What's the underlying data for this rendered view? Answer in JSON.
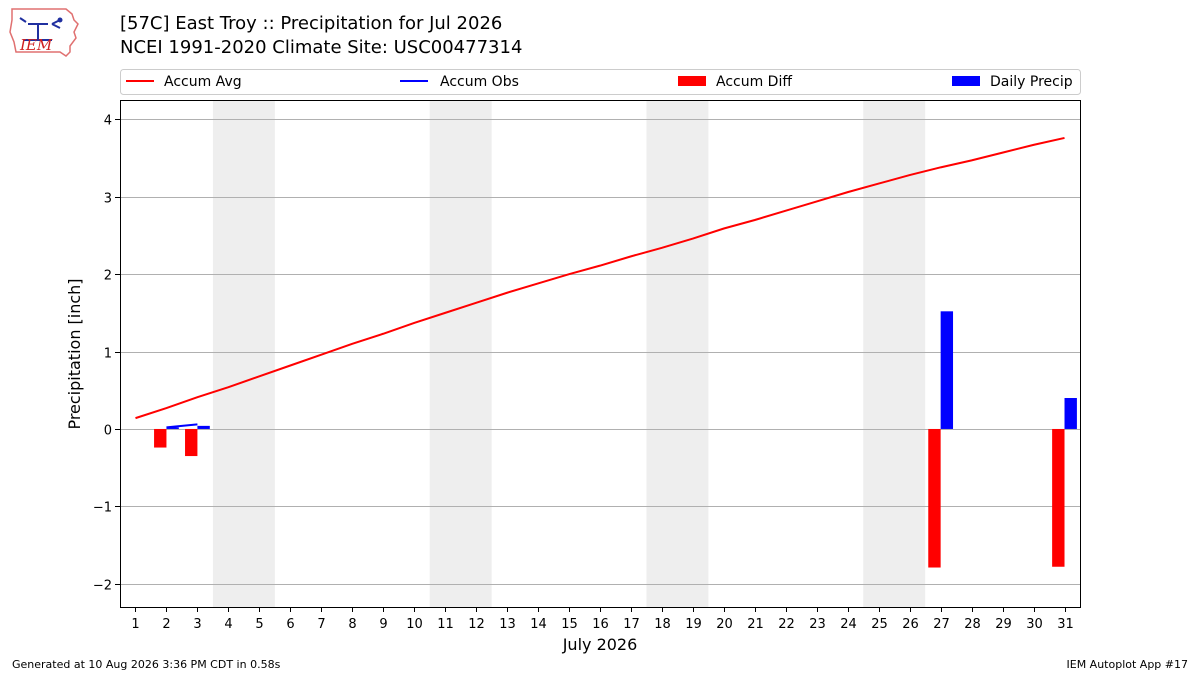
{
  "header": {
    "title_line1": "[57C] East Troy :: Precipitation for Jul 2026",
    "title_line2": "NCEI 1991-2020 Climate Site: USC00477314",
    "logo_text": "IEM"
  },
  "footer": {
    "left": "Generated at 10 Aug 2026 3:36 PM CDT in 0.58s",
    "right": "IEM Autoplot App #17"
  },
  "colors": {
    "avg": "#ff0000",
    "obs": "#0000ff",
    "diff": "#ff0000",
    "daily": "#0000ff",
    "weekend": "#eeeeee",
    "grid": "#b0b0b0"
  },
  "chart_data": {
    "type": "bar",
    "xlabel": "July 2026",
    "ylabel": "Precipitation [inch]",
    "xlim": [
      0.5,
      31.5
    ],
    "ylim": [
      -2.3,
      4.25
    ],
    "yticks": [
      -2,
      -1,
      0,
      1,
      2,
      3,
      4
    ],
    "ytick_labels": [
      "−2",
      "−1",
      "0",
      "1",
      "2",
      "3",
      "4"
    ],
    "days": [
      1,
      2,
      3,
      4,
      5,
      6,
      7,
      8,
      9,
      10,
      11,
      12,
      13,
      14,
      15,
      16,
      17,
      18,
      19,
      20,
      21,
      22,
      23,
      24,
      25,
      26,
      27,
      28,
      29,
      30,
      31
    ],
    "weekend_spans": [
      [
        3.5,
        5.5
      ],
      [
        10.5,
        12.5
      ],
      [
        17.5,
        19.5
      ],
      [
        24.5,
        26.5
      ]
    ],
    "grid": true,
    "legend": {
      "placement": "top",
      "entries": [
        "Accum Avg",
        "Accum Obs",
        "Accum Diff",
        "Daily Precip"
      ]
    },
    "series": [
      {
        "name": "Accum Avg",
        "type": "line",
        "x": [
          1,
          2,
          3,
          4,
          5,
          6,
          7,
          8,
          9,
          10,
          11,
          12,
          13,
          14,
          15,
          16,
          17,
          18,
          19,
          20,
          21,
          22,
          23,
          24,
          25,
          26,
          27,
          28,
          29,
          30,
          31
        ],
        "values": [
          0.14,
          0.27,
          0.41,
          0.54,
          0.68,
          0.82,
          0.96,
          1.1,
          1.23,
          1.37,
          1.5,
          1.63,
          1.76,
          1.88,
          2.0,
          2.11,
          2.23,
          2.34,
          2.46,
          2.59,
          2.7,
          2.82,
          2.94,
          3.06,
          3.17,
          3.28,
          3.38,
          3.47,
          3.57,
          3.67,
          3.76
        ]
      },
      {
        "name": "Accum Obs",
        "type": "line",
        "x": [
          2,
          3
        ],
        "values": [
          0.02,
          0.06
        ]
      },
      {
        "name": "Accum Diff",
        "type": "bar",
        "x": [
          2,
          3,
          27,
          31
        ],
        "values": [
          -0.24,
          -0.35,
          -1.79,
          -1.78
        ]
      },
      {
        "name": "Daily Precip",
        "type": "bar",
        "x": [
          2,
          3,
          27,
          31
        ],
        "values": [
          0.02,
          0.04,
          1.52,
          0.4
        ]
      }
    ]
  }
}
